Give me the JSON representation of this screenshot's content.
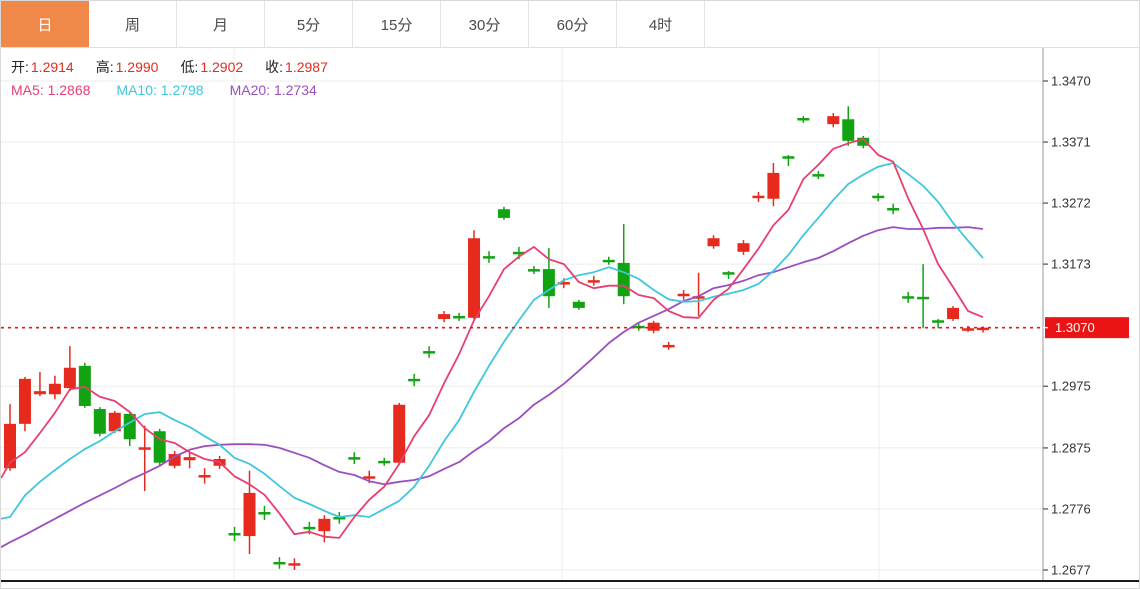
{
  "tabs": {
    "items": [
      {
        "label": "日",
        "active": true
      },
      {
        "label": "周",
        "active": false
      },
      {
        "label": "月",
        "active": false
      },
      {
        "label": "5分",
        "active": false
      },
      {
        "label": "15分",
        "active": false
      },
      {
        "label": "30分",
        "active": false
      },
      {
        "label": "60分",
        "active": false
      },
      {
        "label": "4时",
        "active": false
      }
    ]
  },
  "quote_bar": {
    "open_label": "开:",
    "open": "1.2914",
    "high_label": "高:",
    "high": "1.2990",
    "low_label": "低:",
    "low": "1.2902",
    "close_label": "收:",
    "close": "1.2987"
  },
  "ma_bar": {
    "ma5_label": "MA5:",
    "ma5": "1.2868",
    "ma10_label": "MA10:",
    "ma10": "1.2798",
    "ma20_label": "MA20:",
    "ma20": "1.2734"
  },
  "colors": {
    "up": "#e62b1e",
    "down": "#12a312",
    "ma5": "#e83e70",
    "ma10": "#3ec7de",
    "ma20": "#9a4fc0",
    "tab_active_bg": "#ef8848",
    "price_line": "#ea1414",
    "price_label_bg": "#ea1414",
    "grid": "#ececec",
    "axis_line": "#9a9a9a",
    "bottom_line": "#1a1a1a",
    "axis_text": "#333333",
    "value_red": "#e62b1e"
  },
  "chart_data": {
    "type": "candlestick",
    "title": "",
    "legend": [
      "MA5",
      "MA10",
      "MA20"
    ],
    "grid": true,
    "y_axis": {
      "side": "right",
      "min": 1.2677,
      "max": 1.347,
      "ticks": [
        "1.3470",
        "1.3371",
        "1.3272",
        "1.3173",
        "1.2975",
        "1.2875",
        "1.2776",
        "1.2677"
      ],
      "tick_values": [
        1.347,
        1.3371,
        1.3272,
        1.3173,
        1.2975,
        1.2875,
        1.2776,
        1.2677
      ]
    },
    "current_price": {
      "value": 1.307,
      "label": "1.3070"
    },
    "candles_format": [
      "open",
      "high",
      "low",
      "close"
    ],
    "candles": [
      [
        1.2842,
        1.2946,
        1.2838,
        1.2914
      ],
      [
        1.2914,
        1.299,
        1.2902,
        1.2987
      ],
      [
        1.2962,
        1.2998,
        1.2959,
        1.2967
      ],
      [
        1.2962,
        1.2992,
        1.2954,
        1.2979
      ],
      [
        1.2972,
        1.304,
        1.2967,
        1.3005
      ],
      [
        1.3008,
        1.3013,
        1.294,
        1.2943
      ],
      [
        1.2938,
        1.2941,
        1.2894,
        1.2898
      ],
      [
        1.2902,
        1.2935,
        1.2899,
        1.2932
      ],
      [
        1.293,
        1.2933,
        1.2878,
        1.2889
      ],
      [
        1.2873,
        1.2911,
        1.2805,
        1.2876
      ],
      [
        1.2902,
        1.2906,
        1.2847,
        1.2851
      ],
      [
        1.2846,
        1.287,
        1.2842,
        1.2865
      ],
      [
        1.2855,
        1.2867,
        1.2842,
        1.286
      ],
      [
        1.2828,
        1.2842,
        1.2817,
        1.2831
      ],
      [
        1.2846,
        1.2862,
        1.2841,
        1.2857
      ],
      [
        1.2737,
        1.2747,
        1.2724,
        1.2734
      ],
      [
        1.2732,
        1.2838,
        1.2703,
        1.2802
      ],
      [
        1.2771,
        1.2781,
        1.2758,
        1.2768
      ],
      [
        1.269,
        1.2698,
        1.2679,
        1.2687
      ],
      [
        1.2685,
        1.2696,
        1.2677,
        1.2688
      ],
      [
        1.2747,
        1.2755,
        1.2735,
        1.2743
      ],
      [
        1.274,
        1.2766,
        1.2722,
        1.276
      ],
      [
        1.2763,
        1.2771,
        1.2752,
        1.276
      ],
      [
        1.286,
        1.2868,
        1.2849,
        1.2857
      ],
      [
        1.2826,
        1.2838,
        1.2818,
        1.2829
      ],
      [
        1.2854,
        1.2859,
        1.2846,
        1.2851
      ],
      [
        1.2851,
        1.2948,
        1.2847,
        1.2945
      ],
      [
        1.2987,
        1.2995,
        1.2975,
        1.2983
      ],
      [
        1.3032,
        1.304,
        1.3021,
        1.3029
      ],
      [
        1.3084,
        1.3097,
        1.3079,
        1.3092
      ],
      [
        1.3089,
        1.3094,
        1.3081,
        1.3086
      ],
      [
        1.3086,
        1.3228,
        1.3084,
        1.3215
      ],
      [
        1.3186,
        1.3194,
        1.3175,
        1.3183
      ],
      [
        1.3262,
        1.3266,
        1.3245,
        1.3248
      ],
      [
        1.3193,
        1.3201,
        1.3181,
        1.3189
      ],
      [
        1.3165,
        1.317,
        1.3157,
        1.3162
      ],
      [
        1.3165,
        1.3199,
        1.3102,
        1.3121
      ],
      [
        1.3141,
        1.315,
        1.3134,
        1.3144
      ],
      [
        1.3112,
        1.3115,
        1.3099,
        1.3102
      ],
      [
        1.3144,
        1.3154,
        1.3138,
        1.3147
      ],
      [
        1.318,
        1.3185,
        1.3172,
        1.3176
      ],
      [
        1.3175,
        1.3238,
        1.3108,
        1.3121
      ],
      [
        1.3073,
        1.3078,
        1.3065,
        1.3069
      ],
      [
        1.3065,
        1.3081,
        1.3061,
        1.3078
      ],
      [
        1.3039,
        1.3047,
        1.3034,
        1.3042
      ],
      [
        1.3121,
        1.3131,
        1.3115,
        1.3125
      ],
      [
        1.3118,
        1.3159,
        1.3089,
        1.3121
      ],
      [
        1.3202,
        1.322,
        1.3198,
        1.3215
      ],
      [
        1.316,
        1.3162,
        1.3149,
        1.3157
      ],
      [
        1.3193,
        1.3212,
        1.3188,
        1.3207
      ],
      [
        1.328,
        1.329,
        1.3274,
        1.3284
      ],
      [
        1.3279,
        1.3337,
        1.3267,
        1.3321
      ],
      [
        1.3348,
        1.335,
        1.3332,
        1.3345
      ],
      [
        1.341,
        1.3413,
        1.3402,
        1.3407
      ],
      [
        1.3319,
        1.3324,
        1.3311,
        1.3316
      ],
      [
        1.34,
        1.3418,
        1.3395,
        1.3413
      ],
      [
        1.3408,
        1.3429,
        1.3365,
        1.3373
      ],
      [
        1.3378,
        1.3381,
        1.3361,
        1.3365
      ],
      [
        1.3284,
        1.3288,
        1.3275,
        1.328
      ],
      [
        1.3264,
        1.3271,
        1.3254,
        1.3261
      ],
      [
        1.3121,
        1.3128,
        1.311,
        1.3118
      ],
      [
        1.312,
        1.3173,
        1.3069,
        1.3116
      ],
      [
        1.3082,
        1.3084,
        1.3069,
        1.3079
      ],
      [
        1.3084,
        1.3105,
        1.3081,
        1.3102
      ],
      [
        1.3066,
        1.3073,
        1.3063,
        1.3069
      ],
      [
        1.3066,
        1.3072,
        1.3062,
        1.307
      ]
    ],
    "series": [
      {
        "name": "MA5",
        "left_edge": 1.2826,
        "values": [
          1.2851,
          1.2868,
          1.2899,
          1.2932,
          1.297,
          1.2974,
          1.2958,
          1.2951,
          1.2933,
          1.2907,
          1.2889,
          1.2883,
          1.2868,
          1.2857,
          1.2852,
          1.2829,
          1.2816,
          1.2799,
          1.2769,
          1.2735,
          1.2739,
          1.2731,
          1.2729,
          1.2763,
          1.2791,
          1.2812,
          1.2849,
          1.2894,
          1.2928,
          1.298,
          1.3027,
          1.3082,
          1.3121,
          1.3165,
          1.3185,
          1.3201,
          1.3181,
          1.3173,
          1.3144,
          1.3134,
          1.3138,
          1.3138,
          1.3123,
          1.3118,
          1.3097,
          1.3087,
          1.3086,
          1.3115,
          1.3133,
          1.3165,
          1.3198,
          1.3236,
          1.3261,
          1.3311,
          1.3334,
          1.336,
          1.3369,
          1.3376,
          1.335,
          1.3339,
          1.328,
          1.323,
          1.3173,
          1.3136,
          1.3097,
          1.3087
        ]
      },
      {
        "name": "MA10",
        "left_edge": 1.276,
        "values": [
          1.2763,
          1.2798,
          1.282,
          1.2839,
          1.2857,
          1.2873,
          1.2886,
          1.2902,
          1.2916,
          1.293,
          1.2933,
          1.292,
          1.2909,
          1.2894,
          1.288,
          1.2859,
          1.2849,
          1.2833,
          1.2813,
          1.2794,
          1.2784,
          1.2773,
          1.2763,
          1.2766,
          1.2763,
          1.2776,
          1.2789,
          1.2812,
          1.2846,
          1.2886,
          1.292,
          1.2966,
          1.3008,
          1.3047,
          1.3082,
          1.3115,
          1.3131,
          1.3147,
          1.3155,
          1.316,
          1.3168,
          1.316,
          1.3149,
          1.3131,
          1.3116,
          1.3112,
          1.3113,
          1.312,
          1.3125,
          1.3131,
          1.3141,
          1.3162,
          1.3188,
          1.322,
          1.3248,
          1.3277,
          1.3303,
          1.3318,
          1.3331,
          1.3337,
          1.3319,
          1.33,
          1.3274,
          1.324,
          1.3211,
          1.3183
        ]
      },
      {
        "name": "MA20",
        "left_edge": 1.2714,
        "values": [
          1.2722,
          1.2734,
          1.2747,
          1.276,
          1.2773,
          1.2786,
          1.2798,
          1.281,
          1.2823,
          1.2834,
          1.2846,
          1.2861,
          1.2872,
          1.2878,
          1.288,
          1.2881,
          1.2881,
          1.288,
          1.2875,
          1.2867,
          1.2859,
          1.2847,
          1.2836,
          1.2831,
          1.2821,
          1.2816,
          1.282,
          1.2823,
          1.2829,
          1.2841,
          1.2852,
          1.287,
          1.2886,
          1.2907,
          1.2923,
          1.2945,
          1.2961,
          1.2979,
          1.3,
          1.3022,
          1.3045,
          1.3063,
          1.3078,
          1.3089,
          1.31,
          1.3113,
          1.3121,
          1.3134,
          1.3139,
          1.3146,
          1.3155,
          1.316,
          1.3168,
          1.3176,
          1.3183,
          1.3194,
          1.3207,
          1.3219,
          1.3228,
          1.3233,
          1.323,
          1.323,
          1.3232,
          1.3232,
          1.3233,
          1.323
        ]
      }
    ]
  }
}
